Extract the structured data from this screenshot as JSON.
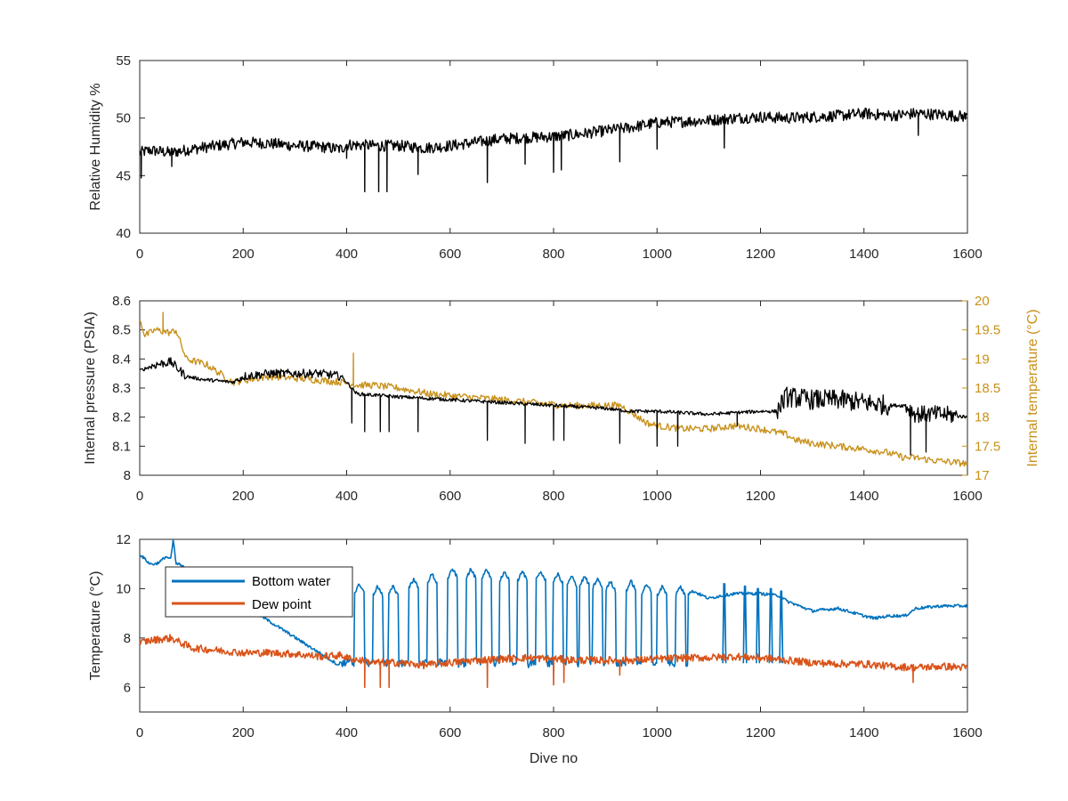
{
  "chart_data": [
    {
      "type": "line",
      "xlabel": "",
      "ylabel": "Relative Humidity %",
      "xlim": [
        0,
        1600
      ],
      "ylim": [
        40,
        55
      ],
      "xticks": [
        0,
        200,
        400,
        600,
        800,
        1000,
        1200,
        1400,
        1600
      ],
      "xtick_labels": [
        "0",
        "200",
        "400",
        "600",
        "800",
        "1000",
        "1200",
        "1400",
        "1600"
      ],
      "yticks": [
        40,
        45,
        50,
        55
      ],
      "ytick_labels": [
        "40",
        "45",
        "50",
        "55"
      ],
      "grid": false,
      "series": [
        {
          "color": "#000000",
          "x": [
            0,
            20,
            60,
            100,
            150,
            200,
            250,
            300,
            350,
            390,
            400,
            450,
            500,
            550,
            600,
            650,
            700,
            750,
            800,
            850,
            900,
            950,
            1000,
            1050,
            1100,
            1150,
            1200,
            1250,
            1300,
            1350,
            1400,
            1450,
            1500,
            1550,
            1600
          ],
          "y": [
            47.0,
            47.2,
            47.0,
            47.3,
            47.6,
            47.9,
            47.8,
            47.6,
            47.5,
            47.3,
            47.7,
            47.6,
            47.6,
            47.4,
            47.6,
            47.9,
            48.2,
            48.3,
            48.4,
            48.6,
            48.9,
            49.2,
            49.6,
            49.7,
            49.8,
            50.0,
            50.1,
            50.0,
            50.1,
            50.2,
            50.4,
            50.2,
            50.4,
            50.3,
            50.1
          ],
          "dips": [
            [
              3,
              44.8
            ],
            [
              62,
              45.8
            ],
            [
              400,
              46.5
            ],
            [
              435,
              43.6
            ],
            [
              462,
              43.6
            ],
            [
              478,
              43.6
            ],
            [
              538,
              45.1
            ],
            [
              672,
              44.4
            ],
            [
              745,
              46.0
            ],
            [
              800,
              45.3
            ],
            [
              815,
              45.5
            ],
            [
              928,
              46.2
            ],
            [
              1000,
              47.3
            ],
            [
              1130,
              47.4
            ],
            [
              1505,
              48.5
            ]
          ]
        }
      ]
    },
    {
      "type": "line",
      "xlabel": "",
      "ylabel": "Internal pressure (PSIA)",
      "y2label": "Internal temperature (°C)",
      "xlim": [
        0,
        1600
      ],
      "ylim": [
        8,
        8.6
      ],
      "y2lim": [
        17,
        20
      ],
      "xticks": [
        0,
        200,
        400,
        600,
        800,
        1000,
        1200,
        1400,
        1600
      ],
      "xtick_labels": [
        "0",
        "200",
        "400",
        "600",
        "800",
        "1000",
        "1200",
        "1400",
        "1600"
      ],
      "yticks": [
        8,
        8.1,
        8.2,
        8.3,
        8.4,
        8.5,
        8.6
      ],
      "ytick_labels": [
        "8",
        "8.1",
        "8.2",
        "8.3",
        "8.4",
        "8.5",
        "8.6"
      ],
      "y2ticks": [
        17,
        17.5,
        18,
        18.5,
        19,
        19.5,
        20
      ],
      "y2tick_labels": [
        "17",
        "17.5",
        "18",
        "18.5",
        "19",
        "19.5",
        "20"
      ],
      "grid": false,
      "series": [
        {
          "axis": "left",
          "color": "#000000",
          "x": [
            0,
            30,
            60,
            90,
            120,
            180,
            200,
            250,
            300,
            350,
            390,
            420,
            500,
            600,
            700,
            800,
            900,
            950,
            1000,
            1100,
            1200,
            1230,
            1250,
            1300,
            1350,
            1400,
            1450,
            1480,
            1500,
            1550,
            1600
          ],
          "y": [
            8.36,
            8.38,
            8.39,
            8.34,
            8.33,
            8.32,
            8.34,
            8.35,
            8.35,
            8.35,
            8.34,
            8.28,
            8.27,
            8.26,
            8.25,
            8.24,
            8.23,
            8.22,
            8.22,
            8.21,
            8.22,
            8.22,
            8.27,
            8.26,
            8.26,
            8.25,
            8.24,
            8.24,
            8.21,
            8.21,
            8.2
          ],
          "dips": [
            [
              410,
              8.18
            ],
            [
              435,
              8.15
            ],
            [
              465,
              8.15
            ],
            [
              482,
              8.15
            ],
            [
              538,
              8.15
            ],
            [
              672,
              8.12
            ],
            [
              745,
              8.11
            ],
            [
              800,
              8.12
            ],
            [
              820,
              8.12
            ],
            [
              928,
              8.11
            ],
            [
              1000,
              8.1
            ],
            [
              1040,
              8.1
            ],
            [
              1155,
              8.17
            ],
            [
              1490,
              8.07
            ],
            [
              1520,
              8.08
            ]
          ]
        },
        {
          "axis": "right",
          "color": "#c8911b",
          "x": [
            0,
            10,
            30,
            60,
            70,
            90,
            130,
            180,
            250,
            330,
            390,
            420,
            450,
            500,
            560,
            630,
            700,
            760,
            820,
            880,
            930,
            980,
            1000,
            1050,
            1100,
            1150,
            1200,
            1250,
            1270,
            1300,
            1350,
            1400,
            1440,
            1480,
            1500,
            1540,
            1600
          ],
          "y": [
            19.7,
            19.4,
            19.5,
            19.45,
            19.5,
            19.0,
            18.9,
            18.6,
            18.7,
            18.65,
            18.6,
            18.55,
            18.55,
            18.5,
            18.4,
            18.35,
            18.3,
            18.25,
            18.2,
            18.2,
            18.2,
            17.9,
            17.85,
            17.8,
            17.8,
            17.85,
            17.8,
            17.7,
            17.6,
            17.55,
            17.5,
            17.45,
            17.4,
            17.3,
            17.3,
            17.25,
            17.2
          ],
          "spikes": [
            [
              413,
              19.1
            ],
            [
              45,
              19.8
            ]
          ]
        }
      ]
    },
    {
      "type": "line",
      "xlabel": "Dive no",
      "ylabel": "Temperature (°C)",
      "xlim": [
        0,
        1600
      ],
      "ylim": [
        5,
        12
      ],
      "xticks": [
        0,
        200,
        400,
        600,
        800,
        1000,
        1200,
        1400,
        1600
      ],
      "xtick_labels": [
        "0",
        "200",
        "400",
        "600",
        "800",
        "1000",
        "1200",
        "1400",
        "1600"
      ],
      "yticks": [
        6,
        8,
        10,
        12
      ],
      "ytick_labels": [
        "6",
        "8",
        "10",
        "12"
      ],
      "grid": false,
      "legend": {
        "placement": "top-left",
        "entries": [
          {
            "label": "Bottom water",
            "color": "#0072bd"
          },
          {
            "label": "Dew point",
            "color": "#d95319"
          }
        ]
      },
      "series": [
        {
          "name": "Bottom water",
          "color": "#0072bd",
          "x": [
            0,
            10,
            20,
            30,
            40,
            50,
            60,
            65,
            70,
            75,
            385,
            390,
            1060,
            1070,
            1100,
            1120,
            1150,
            1200,
            1240,
            1250,
            1300,
            1350,
            1400,
            1420,
            1450,
            1480,
            1500,
            1550,
            1600
          ],
          "y": [
            11.4,
            11.2,
            11.0,
            11.0,
            11.1,
            11.3,
            11.2,
            12.0,
            11.0,
            11.0,
            6.9,
            7.1,
            9.8,
            9.9,
            9.6,
            9.7,
            9.8,
            9.8,
            9.7,
            9.5,
            9.1,
            9.2,
            8.9,
            8.8,
            8.9,
            8.9,
            9.2,
            9.3,
            9.3
          ],
          "oscillations": {
            "peaks": [
              [
                425,
                10.2
              ],
              [
                460,
                10.1
              ],
              [
                490,
                10.1
              ],
              [
                530,
                10.4
              ],
              [
                565,
                10.6
              ],
              [
                605,
                10.8
              ],
              [
                640,
                10.8
              ],
              [
                670,
                10.8
              ],
              [
                705,
                10.7
              ],
              [
                740,
                10.7
              ],
              [
                775,
                10.7
              ],
              [
                808,
                10.6
              ],
              [
                835,
                10.5
              ],
              [
                860,
                10.5
              ],
              [
                885,
                10.4
              ],
              [
                910,
                10.3
              ],
              [
                950,
                10.3
              ],
              [
                980,
                10.2
              ],
              [
                1010,
                10.1
              ],
              [
                1045,
                10.1
              ]
            ],
            "troughs_level": 7.0
          },
          "spikes": [
            [
              1130,
              10.2
            ],
            [
              1170,
              10.1
            ],
            [
              1195,
              10.0
            ],
            [
              1220,
              10.0
            ],
            [
              1240,
              9.9
            ]
          ]
        },
        {
          "name": "Dew point",
          "color": "#d95319",
          "x": [
            0,
            20,
            40,
            60,
            80,
            100,
            150,
            200,
            250,
            300,
            350,
            390,
            400,
            450,
            500,
            550,
            600,
            650,
            700,
            750,
            800,
            850,
            900,
            950,
            1000,
            1050,
            1100,
            1150,
            1200,
            1250,
            1300,
            1350,
            1400,
            1450,
            1500,
            1550,
            1600
          ],
          "y": [
            7.8,
            7.9,
            7.95,
            8.0,
            7.8,
            7.6,
            7.5,
            7.4,
            7.4,
            7.35,
            7.25,
            7.3,
            7.2,
            7.0,
            7.0,
            6.9,
            7.0,
            7.1,
            7.15,
            7.2,
            7.15,
            7.1,
            7.1,
            7.1,
            7.15,
            7.2,
            7.2,
            7.25,
            7.2,
            7.1,
            7.0,
            6.95,
            6.95,
            6.85,
            6.8,
            6.85,
            6.8
          ],
          "dips": [
            [
              435,
              6.0
            ],
            [
              465,
              6.0
            ],
            [
              482,
              6.0
            ],
            [
              672,
              6.0
            ],
            [
              800,
              6.1
            ],
            [
              820,
              6.2
            ],
            [
              928,
              6.5
            ],
            [
              1495,
              6.2
            ]
          ]
        }
      ]
    }
  ]
}
